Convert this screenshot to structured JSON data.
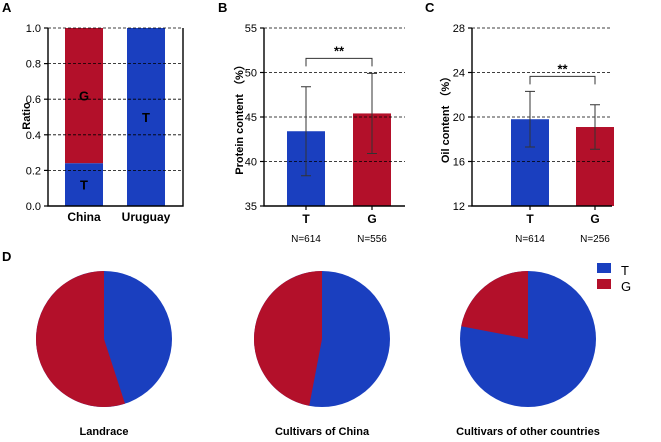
{
  "colors": {
    "T": "#1a3fbf",
    "G": "#b3102a"
  },
  "panels": {
    "a": "A",
    "b": "B",
    "c": "C",
    "d": "D"
  },
  "chart_data": [
    {
      "id": "A",
      "type": "bar",
      "stacked": true,
      "ylabel": "Ratio",
      "ylim": [
        0,
        1.0
      ],
      "yticks": [
        0.0,
        0.2,
        0.4,
        0.6,
        0.8,
        1.0
      ],
      "yticklabels": [
        "0.0",
        "0.2",
        "0.4",
        "0.6",
        "0.8",
        "1.0"
      ],
      "grid": true,
      "categories": [
        "China",
        "Uruguay"
      ],
      "series": [
        {
          "name": "T",
          "values": [
            0.24,
            1.0
          ]
        },
        {
          "name": "G",
          "values": [
            0.76,
            0.0
          ]
        }
      ]
    },
    {
      "id": "B",
      "type": "bar",
      "ylabel": "Protein content （%）",
      "ylim": [
        35,
        55
      ],
      "yticks": [
        35,
        40,
        45,
        50,
        55
      ],
      "yticklabels": [
        "35",
        "40",
        "45",
        "50",
        "55"
      ],
      "grid": true,
      "categories": [
        "T",
        "G"
      ],
      "values": [
        43.4,
        45.4
      ],
      "errors": [
        5.0,
        4.5
      ],
      "n_labels": [
        "N=614",
        "N=556"
      ],
      "significance": "**"
    },
    {
      "id": "C",
      "type": "bar",
      "ylabel": "Oil content （%）",
      "ylim": [
        12,
        28
      ],
      "yticks": [
        12,
        16,
        20,
        24,
        28
      ],
      "yticklabels": [
        "12",
        "16",
        "20",
        "24",
        "28"
      ],
      "grid": true,
      "categories": [
        "T",
        "G"
      ],
      "values": [
        19.8,
        19.1
      ],
      "errors": [
        2.5,
        2.0
      ],
      "n_labels": [
        "N=614",
        "N=256"
      ],
      "significance": "**"
    },
    {
      "id": "D",
      "type": "pie",
      "legend": [
        "T",
        "G"
      ],
      "pies": [
        {
          "title": "Landrace",
          "T": 0.45,
          "G": 0.55
        },
        {
          "title": "Cultivars of China",
          "T": 0.53,
          "G": 0.47
        },
        {
          "title": "Cultivars of other countries",
          "T": 0.78,
          "G": 0.22
        }
      ]
    }
  ]
}
